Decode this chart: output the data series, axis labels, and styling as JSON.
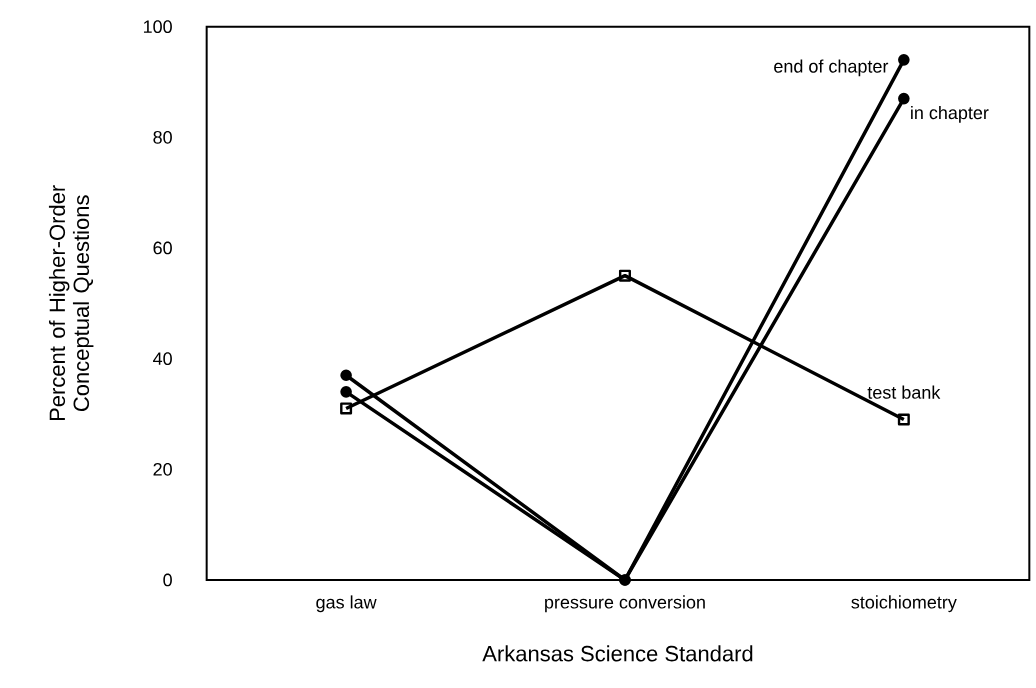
{
  "chart_data": {
    "type": "line",
    "xlabel": "Arkansas Science Standard",
    "ylabel": "Percent of Higher-Order Conceptual Questions",
    "categories": [
      "gas law",
      "pressure conversion",
      "stoichiometry"
    ],
    "series": [
      {
        "name": "end of chapter",
        "color": "#000000",
        "marker": "circle",
        "values": [
          34,
          0,
          94
        ]
      },
      {
        "name": "in chapter",
        "color": "#000000",
        "marker": "circle",
        "values": [
          37,
          0,
          87
        ]
      },
      {
        "name": "test bank",
        "color": "#000000",
        "marker": "square",
        "values": [
          31,
          55,
          29
        ]
      }
    ],
    "ylim": [
      0,
      100
    ],
    "yticks": [
      0,
      20,
      40,
      60,
      80,
      100
    ],
    "grid": false,
    "legend": false,
    "line_style": "solid"
  }
}
